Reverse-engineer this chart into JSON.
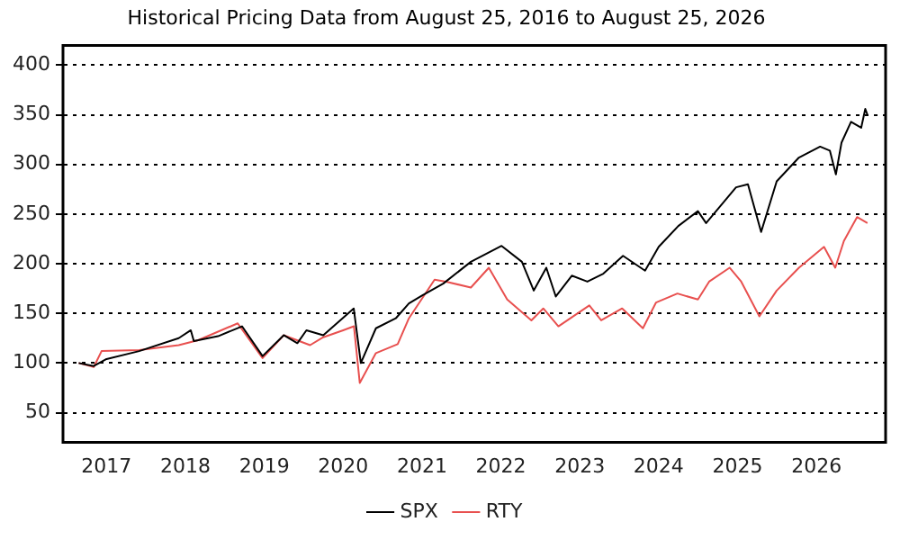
{
  "chart_data": {
    "type": "line",
    "title": "Historical Pricing Data from August 25, 2016 to August 25, 2026",
    "xlim": [
      "2016-06-13",
      "2026-11-17"
    ],
    "xticks": [
      "2017",
      "2018",
      "2019",
      "2020",
      "2021",
      "2022",
      "2023",
      "2024",
      "2025",
      "2026"
    ],
    "ylim": [
      20,
      420
    ],
    "yticks": [
      50,
      100,
      150,
      200,
      250,
      300,
      350,
      400
    ],
    "grid": "y",
    "legend": "bottom",
    "marker": "none",
    "line_style": "solid",
    "series": [
      {
        "name": "SPX",
        "color": "#000000",
        "x": [
          "2016-08-25",
          "2016-11-03",
          "2017-01-01",
          "2017-06-01",
          "2017-12-01",
          "2018-01-26",
          "2018-02-09",
          "2018-06-01",
          "2018-09-20",
          "2018-12-24",
          "2019-04-01",
          "2019-06-03",
          "2019-07-15",
          "2019-10-01",
          "2020-02-19",
          "2020-03-23",
          "2020-06-01",
          "2020-09-01",
          "2020-11-01",
          "2021-01-01",
          "2021-04-09",
          "2021-08-15",
          "2022-01-04",
          "2022-04-08",
          "2022-06-02",
          "2022-07-30",
          "2022-09-12",
          "2022-11-25",
          "2023-02-05",
          "2023-04-20",
          "2023-07-20",
          "2023-10-30",
          "2024-01-01",
          "2024-04-01",
          "2024-07-01",
          "2024-08-08",
          "2024-12-25",
          "2025-02-18",
          "2025-04-20",
          "2025-07-01",
          "2025-10-12",
          "2026-01-18",
          "2026-03-04",
          "2026-04-01",
          "2026-04-27",
          "2026-06-10",
          "2026-07-27",
          "2026-08-15",
          "2026-08-25"
        ],
        "values": [
          100,
          97,
          104,
          112,
          125,
          133,
          122,
          127,
          137,
          107,
          128,
          120,
          133,
          128,
          155,
          100,
          135,
          145,
          160,
          168,
          180,
          202,
          218,
          202,
          173,
          196,
          167,
          188,
          182,
          190,
          208,
          193,
          217,
          238,
          253,
          241,
          277,
          280,
          232,
          283,
          307,
          318,
          314,
          290,
          322,
          343,
          337,
          356,
          350
        ]
      },
      {
        "name": "RTY",
        "color": "#e8504f",
        "x": [
          "2016-08-25",
          "2016-11-03",
          "2016-12-09",
          "2017-06-01",
          "2017-12-01",
          "2018-03-01",
          "2018-08-31",
          "2018-12-24",
          "2019-04-01",
          "2019-08-01",
          "2019-10-01",
          "2020-01-01",
          "2020-02-20",
          "2020-03-18",
          "2020-06-01",
          "2020-09-10",
          "2020-11-01",
          "2021-02-28",
          "2021-04-22",
          "2021-08-15",
          "2021-11-06",
          "2022-01-30",
          "2022-05-22",
          "2022-07-16",
          "2022-09-24",
          "2023-02-14",
          "2023-04-10",
          "2023-07-16",
          "2023-10-20",
          "2023-12-20",
          "2024-03-28",
          "2024-07-01",
          "2024-08-22",
          "2024-11-25",
          "2025-01-18",
          "2025-04-12",
          "2025-07-01",
          "2025-10-12",
          "2026-02-05",
          "2026-03-29",
          "2026-05-08",
          "2026-07-08",
          "2026-08-25"
        ],
        "values": [
          100,
          96,
          112,
          113,
          118,
          123,
          140,
          105,
          128,
          118,
          126,
          133,
          137,
          80,
          110,
          119,
          145,
          184,
          182,
          176,
          196,
          164,
          143,
          155,
          137,
          158,
          143,
          155,
          135,
          161,
          170,
          164,
          182,
          196,
          182,
          147,
          173,
          196,
          217,
          196,
          223,
          247,
          241
        ]
      }
    ]
  }
}
